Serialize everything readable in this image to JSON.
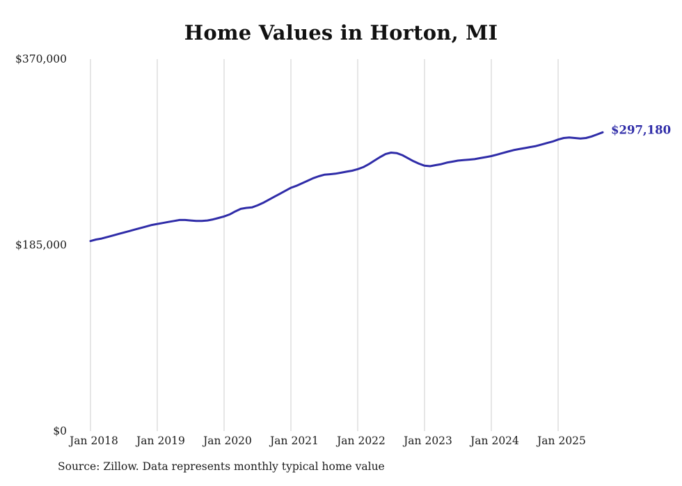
{
  "title": "Home Values in Horton, MI",
  "source_note": "Source: Zillow. Data represents monthly typical home value",
  "colors": {
    "line": "#2f2ca8",
    "grid": "#cccccc",
    "text": "#1a1a1a"
  },
  "chart_data": {
    "type": "line",
    "title": "Home Values in Horton, MI",
    "series_name": "Typical home value (monthly)",
    "x_start": "Jan 2018",
    "x_interval": "month",
    "x_tick_labels": [
      "Jan 2018",
      "Jan 2019",
      "Jan 2020",
      "Jan 2021",
      "Jan 2022",
      "Jan 2023",
      "Jan 2024",
      "Jan 2025"
    ],
    "y_ticks": [
      0,
      185000,
      370000
    ],
    "y_tick_labels": [
      "$0",
      "$185,000",
      "$370,000"
    ],
    "ylim": [
      0,
      370000
    ],
    "grid": "vertical-only",
    "legend": "none",
    "end_annotation": "$297,180",
    "last_value": 297180,
    "values": [
      189000,
      190500,
      191500,
      193000,
      194500,
      196000,
      197500,
      199000,
      200500,
      202000,
      203500,
      205000,
      206000,
      207000,
      208000,
      209000,
      210000,
      210000,
      209500,
      209000,
      209000,
      209500,
      210500,
      212000,
      213500,
      215500,
      218500,
      221000,
      222000,
      222500,
      224500,
      227000,
      230000,
      233000,
      236000,
      239000,
      242000,
      244000,
      246500,
      249000,
      251500,
      253500,
      255000,
      255500,
      256000,
      257000,
      258000,
      259000,
      260500,
      262500,
      265500,
      269000,
      272500,
      275500,
      277000,
      276500,
      274500,
      271500,
      268500,
      266000,
      264000,
      263500,
      264500,
      265500,
      267000,
      268000,
      269000,
      269500,
      270000,
      270500,
      271500,
      272500,
      273500,
      275000,
      276500,
      278000,
      279500,
      280500,
      281500,
      282500,
      283500,
      285000,
      286500,
      288000,
      290000,
      291500,
      292000,
      291500,
      291000,
      291500,
      293000,
      295000,
      297180
    ]
  }
}
